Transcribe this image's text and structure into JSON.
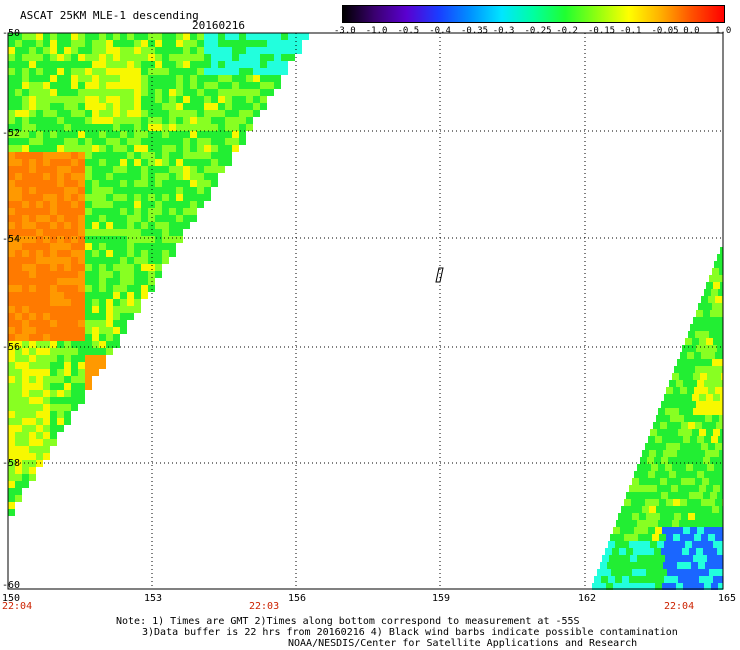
{
  "header": {
    "title": "ASCAT 25KM MLE-1 descending",
    "date": "20160216"
  },
  "colorbar": {
    "ticks": [
      "-3.0",
      "-1.0",
      "-0.5",
      "-0.4",
      "-0.35",
      "-0.3",
      "-0.25",
      "-0.2",
      "-0.15",
      "-0.1",
      "-0.05",
      "0.0",
      "1.0"
    ],
    "colors": [
      "#000000",
      "#3a0070",
      "#5a00d0",
      "#1a3cff",
      "#0090ff",
      "#00e6ff",
      "#00ffa0",
      "#20ff30",
      "#90ff10",
      "#ffff00",
      "#ffb000",
      "#ff5000",
      "#ff0000"
    ]
  },
  "map": {
    "lat_labels": [
      "-50",
      "-52",
      "-54",
      "-56",
      "-58",
      "-60"
    ],
    "lon_labels": [
      "150",
      "153",
      "156",
      "159",
      "162",
      "165"
    ],
    "time_labels": [
      "22:04",
      "22:03",
      "22:04"
    ],
    "swath_colors": {
      "green": "#22ee33",
      "lightgreen": "#88ff22",
      "yellow": "#f8f800",
      "orange": "#ff9900",
      "darkorange": "#ff7a00",
      "cyan": "#22ffdd",
      "blue": "#1a66ff"
    }
  },
  "notes": {
    "line1": "Note: 1) Times are GMT 2)Times along bottom correspond to measurement at -55S",
    "line2": "3)Data buffer is 22 hrs from 20160216 4) Black wind barbs indicate possible contamination",
    "line3": "NOAA/NESDIS/Center for Satellite Applications and Research"
  }
}
